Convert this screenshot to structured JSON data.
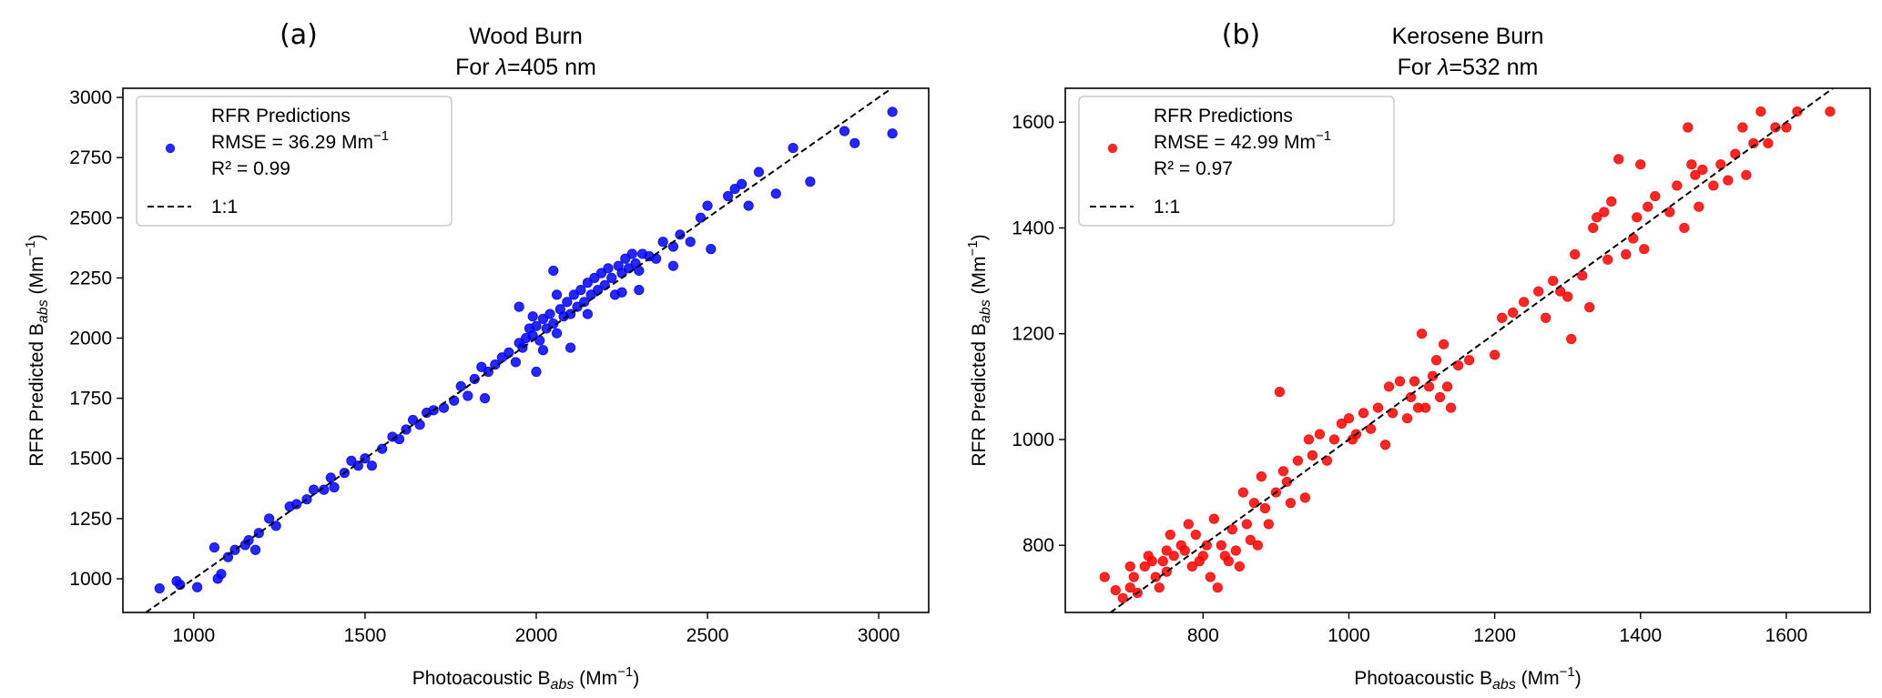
{
  "chart_data": [
    {
      "type": "scatter",
      "panel_label": "(a)",
      "title_line1": "Wood Burn",
      "title_line2_prefix": "For ",
      "title_line2_symbol": "λ",
      "title_line2_suffix": "=405 nm",
      "xlabel": {
        "main": "Photoacoustic B",
        "sub": "abs",
        "unit": " (Mm",
        "sup": "−1",
        "close": ")"
      },
      "ylabel": {
        "main": "RFR Predicted B",
        "sub": "abs",
        "unit": " (Mm",
        "sup": "−1",
        "close": ")"
      },
      "xlim": [
        793,
        3146
      ],
      "ylim": [
        860,
        3038
      ],
      "xticks": [
        1000,
        1500,
        2000,
        2500,
        3000
      ],
      "yticks": [
        1000,
        1250,
        1500,
        1750,
        2000,
        2250,
        2500,
        2750,
        3000
      ],
      "grid": false,
      "legend_placement": "upper-left",
      "legend": {
        "series_name": "RFR Predictions",
        "rmse_text": "RMSE = 36.29 Mm",
        "rmse_sup": "−1",
        "r2_text": "R² = 0.99",
        "line_name": "1:1"
      },
      "color": "#0000ff",
      "reference_line": "1:1",
      "points": [
        [
          900,
          960
        ],
        [
          960,
          975
        ],
        [
          950,
          990
        ],
        [
          1010,
          965
        ],
        [
          1070,
          1000
        ],
        [
          1080,
          1020
        ],
        [
          1060,
          1130
        ],
        [
          1100,
          1090
        ],
        [
          1120,
          1120
        ],
        [
          1150,
          1140
        ],
        [
          1160,
          1160
        ],
        [
          1190,
          1190
        ],
        [
          1180,
          1120
        ],
        [
          1220,
          1250
        ],
        [
          1240,
          1220
        ],
        [
          1280,
          1300
        ],
        [
          1300,
          1310
        ],
        [
          1330,
          1330
        ],
        [
          1350,
          1370
        ],
        [
          1380,
          1370
        ],
        [
          1400,
          1420
        ],
        [
          1410,
          1380
        ],
        [
          1440,
          1440
        ],
        [
          1460,
          1490
        ],
        [
          1480,
          1470
        ],
        [
          1500,
          1500
        ],
        [
          1520,
          1470
        ],
        [
          1550,
          1540
        ],
        [
          1580,
          1590
        ],
        [
          1600,
          1580
        ],
        [
          1620,
          1620
        ],
        [
          1640,
          1660
        ],
        [
          1660,
          1640
        ],
        [
          1680,
          1690
        ],
        [
          1700,
          1700
        ],
        [
          1730,
          1710
        ],
        [
          1760,
          1740
        ],
        [
          1780,
          1800
        ],
        [
          1800,
          1760
        ],
        [
          1820,
          1830
        ],
        [
          1840,
          1880
        ],
        [
          1860,
          1860
        ],
        [
          1880,
          1890
        ],
        [
          1900,
          1920
        ],
        [
          1920,
          1940
        ],
        [
          1940,
          1900
        ],
        [
          1950,
          1980
        ],
        [
          1960,
          1960
        ],
        [
          1970,
          2000
        ],
        [
          1980,
          2040
        ],
        [
          1990,
          2010
        ],
        [
          2000,
          2050
        ],
        [
          2010,
          1990
        ],
        [
          2020,
          2080
        ],
        [
          2030,
          2040
        ],
        [
          2040,
          2100
        ],
        [
          2050,
          2060
        ],
        [
          2060,
          2020
        ],
        [
          2070,
          2120
        ],
        [
          2080,
          2090
        ],
        [
          2090,
          2150
        ],
        [
          2100,
          2100
        ],
        [
          2110,
          2180
        ],
        [
          2120,
          2130
        ],
        [
          2130,
          2200
        ],
        [
          2140,
          2150
        ],
        [
          2150,
          2230
        ],
        [
          2160,
          2180
        ],
        [
          2170,
          2250
        ],
        [
          2180,
          2200
        ],
        [
          2190,
          2270
        ],
        [
          2200,
          2220
        ],
        [
          2210,
          2290
        ],
        [
          2220,
          2250
        ],
        [
          2230,
          2180
        ],
        [
          2240,
          2300
        ],
        [
          2250,
          2270
        ],
        [
          2260,
          2330
        ],
        [
          2270,
          2290
        ],
        [
          2280,
          2350
        ],
        [
          2290,
          2310
        ],
        [
          2300,
          2280
        ],
        [
          2310,
          2350
        ],
        [
          2330,
          2340
        ],
        [
          2350,
          2330
        ],
        [
          2370,
          2400
        ],
        [
          2400,
          2380
        ],
        [
          2420,
          2430
        ],
        [
          2450,
          2400
        ],
        [
          2480,
          2500
        ],
        [
          2500,
          2550
        ],
        [
          2510,
          2370
        ],
        [
          2560,
          2590
        ],
        [
          2580,
          2620
        ],
        [
          2600,
          2640
        ],
        [
          2620,
          2550
        ],
        [
          2650,
          2690
        ],
        [
          2700,
          2600
        ],
        [
          2750,
          2790
        ],
        [
          2800,
          2650
        ],
        [
          2900,
          2860
        ],
        [
          2930,
          2810
        ],
        [
          3040,
          2940
        ],
        [
          3040,
          2850
        ],
        [
          2050,
          2280
        ],
        [
          1950,
          2130
        ],
        [
          2000,
          1860
        ],
        [
          2100,
          1960
        ],
        [
          1850,
          1750
        ],
        [
          2300,
          2200
        ],
        [
          2400,
          2300
        ],
        [
          2060,
          2180
        ],
        [
          2150,
          2100
        ],
        [
          2250,
          2190
        ],
        [
          2020,
          1950
        ],
        [
          1990,
          2090
        ]
      ]
    },
    {
      "type": "scatter",
      "panel_label": "(b)",
      "title_line1": "Kerosene Burn",
      "title_line2_prefix": "For ",
      "title_line2_symbol": "λ",
      "title_line2_suffix": "=532 nm",
      "xlabel": {
        "main": "Photoacoustic B",
        "sub": "abs",
        "unit": " (Mm",
        "sup": "−1",
        "close": ")"
      },
      "ylabel": {
        "main": "RFR Predicted B",
        "sub": "abs",
        "unit": " (Mm",
        "sup": "−1",
        "close": ")"
      },
      "xlim": [
        611,
        1715
      ],
      "ylim": [
        673,
        1664
      ],
      "xticks": [
        800,
        1000,
        1200,
        1400,
        1600
      ],
      "yticks": [
        800,
        1000,
        1200,
        1400,
        1600
      ],
      "grid": false,
      "legend_placement": "upper-left",
      "legend": {
        "series_name": "RFR Predictions",
        "rmse_text": "RMSE = 42.99 Mm",
        "rmse_sup": "−1",
        "r2_text": "R² = 0.97",
        "line_name": "1:1"
      },
      "color": "#ff0000",
      "reference_line": "1:1",
      "points": [
        [
          665,
          740
        ],
        [
          680,
          715
        ],
        [
          690,
          700
        ],
        [
          700,
          720
        ],
        [
          705,
          740
        ],
        [
          710,
          710
        ],
        [
          720,
          760
        ],
        [
          725,
          780
        ],
        [
          730,
          770
        ],
        [
          735,
          740
        ],
        [
          740,
          720
        ],
        [
          745,
          770
        ],
        [
          750,
          790
        ],
        [
          755,
          820
        ],
        [
          760,
          780
        ],
        [
          770,
          800
        ],
        [
          775,
          790
        ],
        [
          780,
          840
        ],
        [
          785,
          760
        ],
        [
          790,
          820
        ],
        [
          795,
          770
        ],
        [
          800,
          780
        ],
        [
          805,
          800
        ],
        [
          810,
          740
        ],
        [
          815,
          850
        ],
        [
          820,
          720
        ],
        [
          825,
          800
        ],
        [
          830,
          780
        ],
        [
          835,
          770
        ],
        [
          840,
          830
        ],
        [
          845,
          790
        ],
        [
          850,
          760
        ],
        [
          855,
          900
        ],
        [
          860,
          840
        ],
        [
          865,
          810
        ],
        [
          870,
          880
        ],
        [
          875,
          800
        ],
        [
          880,
          930
        ],
        [
          885,
          870
        ],
        [
          890,
          840
        ],
        [
          900,
          900
        ],
        [
          905,
          1090
        ],
        [
          910,
          940
        ],
        [
          915,
          920
        ],
        [
          920,
          880
        ],
        [
          930,
          960
        ],
        [
          940,
          890
        ],
        [
          945,
          1000
        ],
        [
          950,
          970
        ],
        [
          960,
          1010
        ],
        [
          970,
          960
        ],
        [
          980,
          1000
        ],
        [
          990,
          1030
        ],
        [
          1000,
          1040
        ],
        [
          1005,
          1000
        ],
        [
          1010,
          1010
        ],
        [
          1020,
          1050
        ],
        [
          1030,
          1020
        ],
        [
          1040,
          1060
        ],
        [
          1050,
          990
        ],
        [
          1055,
          1100
        ],
        [
          1060,
          1050
        ],
        [
          1070,
          1110
        ],
        [
          1080,
          1040
        ],
        [
          1085,
          1080
        ],
        [
          1090,
          1110
        ],
        [
          1095,
          1060
        ],
        [
          1100,
          1200
        ],
        [
          1105,
          1060
        ],
        [
          1110,
          1100
        ],
        [
          1115,
          1120
        ],
        [
          1120,
          1150
        ],
        [
          1125,
          1080
        ],
        [
          1130,
          1180
        ],
        [
          1135,
          1100
        ],
        [
          1140,
          1060
        ],
        [
          1150,
          1140
        ],
        [
          1165,
          1150
        ],
        [
          1200,
          1160
        ],
        [
          1210,
          1230
        ],
        [
          1225,
          1240
        ],
        [
          1240,
          1260
        ],
        [
          1260,
          1280
        ],
        [
          1270,
          1230
        ],
        [
          1280,
          1300
        ],
        [
          1290,
          1280
        ],
        [
          1300,
          1270
        ],
        [
          1305,
          1190
        ],
        [
          1310,
          1350
        ],
        [
          1320,
          1310
        ],
        [
          1330,
          1250
        ],
        [
          1335,
          1400
        ],
        [
          1340,
          1420
        ],
        [
          1350,
          1430
        ],
        [
          1355,
          1340
        ],
        [
          1360,
          1450
        ],
        [
          1370,
          1530
        ],
        [
          1380,
          1350
        ],
        [
          1390,
          1380
        ],
        [
          1395,
          1420
        ],
        [
          1400,
          1520
        ],
        [
          1405,
          1360
        ],
        [
          1410,
          1440
        ],
        [
          1420,
          1460
        ],
        [
          1440,
          1430
        ],
        [
          1450,
          1480
        ],
        [
          1460,
          1400
        ],
        [
          1465,
          1590
        ],
        [
          1470,
          1520
        ],
        [
          1475,
          1500
        ],
        [
          1480,
          1440
        ],
        [
          1485,
          1510
        ],
        [
          1500,
          1480
        ],
        [
          1510,
          1520
        ],
        [
          1520,
          1490
        ],
        [
          1530,
          1540
        ],
        [
          1540,
          1590
        ],
        [
          1545,
          1500
        ],
        [
          1555,
          1560
        ],
        [
          1565,
          1620
        ],
        [
          1575,
          1560
        ],
        [
          1585,
          1590
        ],
        [
          1600,
          1590
        ],
        [
          1615,
          1620
        ],
        [
          1660,
          1620
        ],
        [
          700,
          760
        ],
        [
          750,
          750
        ]
      ]
    }
  ]
}
